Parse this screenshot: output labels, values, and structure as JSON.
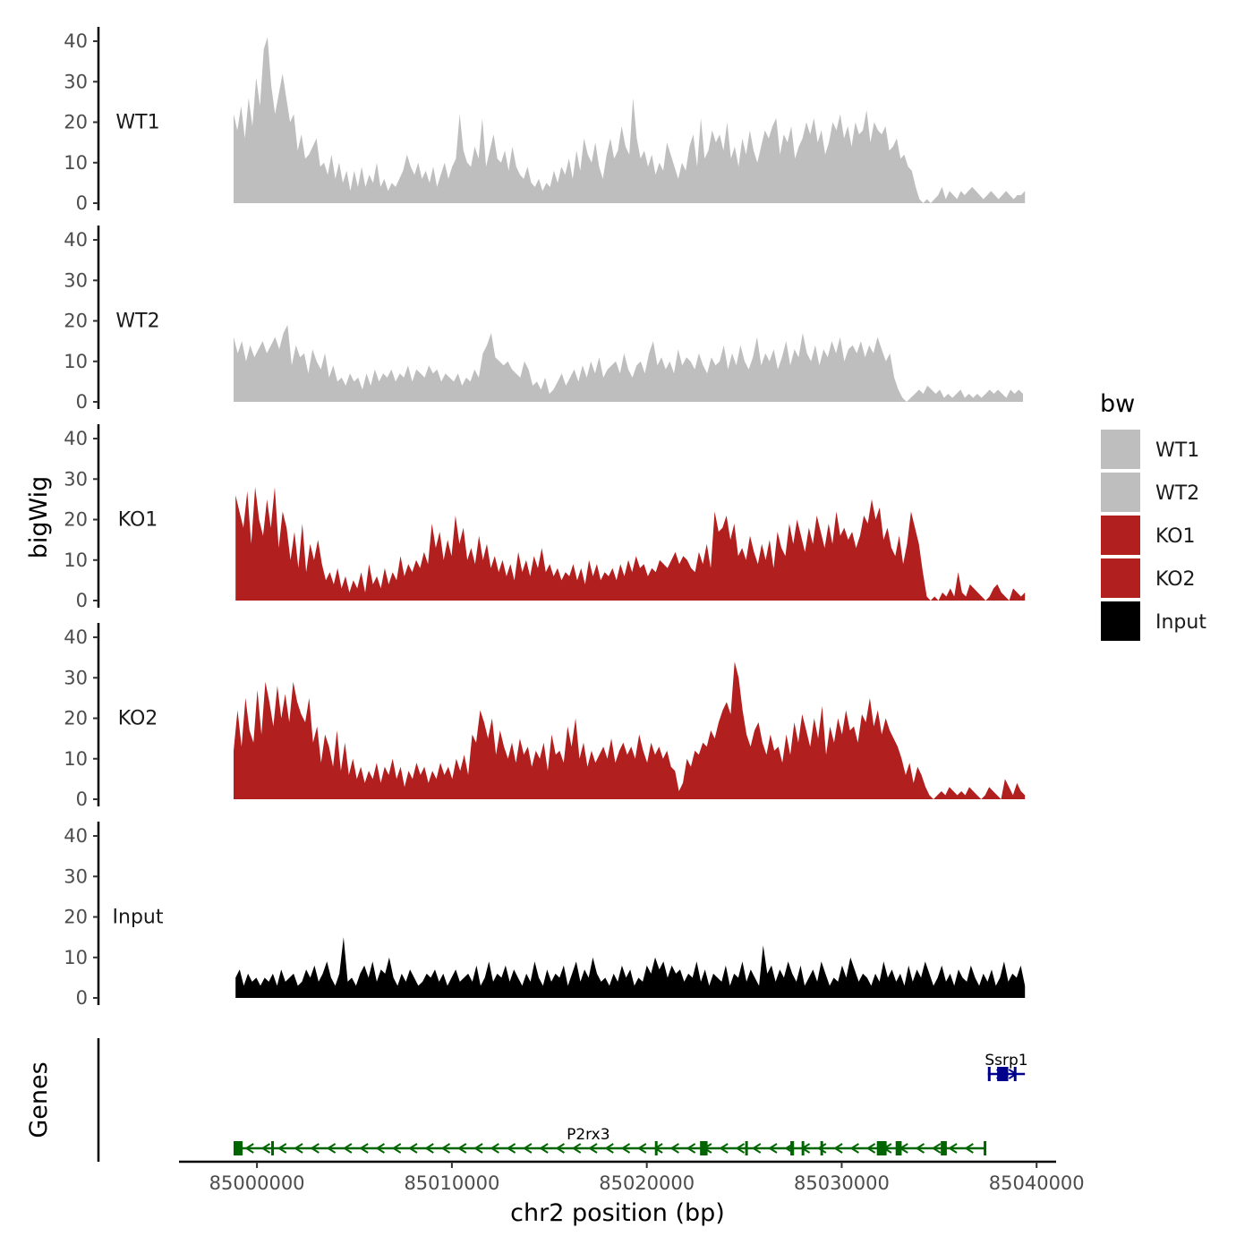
{
  "chart_data": {
    "type": "area",
    "y_axis_title": "bigWig",
    "x_axis_title": "chr2 position (bp)",
    "x_range": [
      84996000,
      85041000
    ],
    "x_ticks": [
      85000000,
      85010000,
      85020000,
      85030000,
      85040000
    ],
    "x_tick_labels": [
      "85000000",
      "85010000",
      "85020000",
      "85030000",
      "85040000"
    ],
    "y_range": [
      0,
      42
    ],
    "y_ticks": [
      0,
      10,
      20,
      30,
      40
    ],
    "y_tick_labels": [
      "0",
      "10",
      "20",
      "30",
      "40"
    ],
    "legend": {
      "title": "bw",
      "position": "right",
      "entries": [
        {
          "label": "WT1",
          "color": "#bebebe"
        },
        {
          "label": "WT2",
          "color": "#bebebe"
        },
        {
          "label": "KO1",
          "color": "#b21f1f"
        },
        {
          "label": "KO2",
          "color": "#b21f1f"
        },
        {
          "label": "Input",
          "color": "#000000"
        }
      ]
    },
    "series": [
      {
        "name": "WT1",
        "color": "#bebebe",
        "x_start": 84998800,
        "x_end": 85039400,
        "values": [
          22,
          18,
          24,
          16,
          26,
          19,
          31,
          24,
          38,
          41,
          29,
          22,
          27,
          32,
          26,
          20,
          22,
          13,
          17,
          11,
          12,
          14,
          16,
          9,
          10,
          7,
          12,
          6,
          10,
          5,
          8,
          3,
          8,
          4,
          9,
          4,
          7,
          5,
          10,
          4,
          6,
          3,
          5,
          4,
          6,
          8,
          12,
          9,
          7,
          10,
          6,
          8,
          5,
          9,
          4,
          7,
          10,
          6,
          9,
          11,
          22,
          13,
          10,
          9,
          14,
          11,
          21,
          9,
          13,
          17,
          11,
          10,
          13,
          8,
          14,
          9,
          7,
          6,
          9,
          5,
          4,
          6,
          3,
          5,
          4,
          8,
          5,
          9,
          7,
          11,
          6,
          13,
          8,
          16,
          12,
          10,
          15,
          9,
          6,
          12,
          16,
          11,
          13,
          19,
          14,
          12,
          26,
          16,
          11,
          13,
          9,
          12,
          7,
          10,
          8,
          15,
          12,
          9,
          6,
          10,
          8,
          14,
          17,
          9,
          21,
          11,
          13,
          18,
          15,
          17,
          13,
          20,
          11,
          14,
          9,
          16,
          12,
          18,
          13,
          10,
          14,
          18,
          16,
          19,
          21,
          12,
          17,
          15,
          19,
          11,
          14,
          16,
          20,
          17,
          21,
          15,
          18,
          12,
          15,
          20,
          18,
          22,
          16,
          19,
          14,
          20,
          17,
          18,
          23,
          15,
          20,
          18,
          17,
          19,
          13,
          14,
          16,
          11,
          12,
          9,
          8,
          4,
          1,
          0,
          1,
          0,
          1,
          2,
          4,
          1,
          3,
          2,
          1,
          3,
          2,
          3,
          4,
          3,
          2,
          1,
          2,
          3,
          2,
          1,
          2,
          3,
          2,
          1,
          2,
          2,
          3
        ]
      },
      {
        "name": "WT2",
        "color": "#bebebe",
        "x_start": 84998800,
        "x_end": 85039300,
        "values": [
          16,
          12,
          15,
          10,
          14,
          11,
          13,
          15,
          12,
          14,
          16,
          13,
          17,
          19,
          9,
          14,
          11,
          12,
          7,
          13,
          10,
          8,
          12,
          6,
          9,
          5,
          6,
          4,
          7,
          5,
          6,
          3,
          7,
          4,
          8,
          5,
          7,
          6,
          8,
          5,
          7,
          6,
          9,
          5,
          8,
          7,
          6,
          9,
          7,
          8,
          5,
          7,
          6,
          5,
          7,
          4,
          6,
          5,
          8,
          6,
          12,
          14,
          17,
          11,
          10,
          9,
          10,
          8,
          7,
          6,
          10,
          8,
          4,
          5,
          3,
          6,
          2,
          3,
          5,
          7,
          4,
          6,
          8,
          5,
          9,
          6,
          10,
          7,
          11,
          6,
          8,
          9,
          10,
          7,
          12,
          8,
          6,
          9,
          10,
          7,
          12,
          15,
          9,
          11,
          8,
          10,
          7,
          13,
          9,
          11,
          10,
          8,
          12,
          9,
          7,
          11,
          9,
          10,
          14,
          8,
          12,
          9,
          14,
          10,
          8,
          11,
          16,
          9,
          12,
          10,
          13,
          8,
          11,
          15,
          9,
          13,
          11,
          17,
          12,
          10,
          14,
          9,
          13,
          11,
          15,
          12,
          16,
          10,
          13,
          14,
          12,
          15,
          11,
          14,
          12,
          16,
          13,
          10,
          12,
          6,
          3,
          1,
          0,
          1,
          2,
          3,
          2,
          4,
          3,
          2,
          3,
          1,
          2,
          1,
          2,
          3,
          1,
          2,
          1,
          2,
          1,
          2,
          3,
          2,
          3,
          2,
          1,
          3,
          2,
          3,
          2
        ]
      },
      {
        "name": "KO1",
        "color": "#b21f1f",
        "x_start": 84998900,
        "x_end": 85039400,
        "values": [
          26,
          22,
          18,
          27,
          14,
          28,
          20,
          16,
          25,
          18,
          28,
          13,
          22,
          18,
          10,
          17,
          8,
          19,
          7,
          14,
          10,
          15,
          9,
          5,
          7,
          4,
          8,
          3,
          6,
          2,
          5,
          3,
          7,
          2,
          9,
          4,
          6,
          3,
          8,
          4,
          7,
          5,
          11,
          6,
          9,
          7,
          10,
          8,
          12,
          9,
          19,
          13,
          17,
          10,
          15,
          11,
          21,
          14,
          18,
          10,
          13,
          9,
          16,
          10,
          14,
          8,
          11,
          7,
          10,
          6,
          9,
          5,
          12,
          7,
          10,
          6,
          11,
          8,
          13,
          7,
          9,
          6,
          8,
          5,
          7,
          6,
          9,
          5,
          8,
          4,
          10,
          6,
          9,
          5,
          7,
          6,
          8,
          5,
          9,
          6,
          10,
          7,
          11,
          8,
          9,
          6,
          8,
          7,
          10,
          9,
          8,
          10,
          12,
          9,
          11,
          10,
          8,
          7,
          12,
          9,
          14,
          8,
          22,
          17,
          18,
          21,
          15,
          19,
          11,
          13,
          10,
          16,
          12,
          9,
          14,
          10,
          15,
          8,
          17,
          13,
          11,
          19,
          14,
          20,
          16,
          12,
          18,
          14,
          21,
          17,
          13,
          19,
          14,
          22,
          16,
          18,
          15,
          17,
          13,
          16,
          21,
          19,
          25,
          20,
          23,
          15,
          18,
          13,
          11,
          16,
          9,
          14,
          22,
          18,
          14,
          7,
          1,
          0,
          1,
          0,
          2,
          1,
          3,
          1,
          7,
          2,
          1,
          4,
          3,
          2,
          1,
          0,
          1,
          3,
          4,
          2,
          1,
          0,
          3,
          2,
          1,
          2
        ]
      },
      {
        "name": "KO2",
        "color": "#b21f1f",
        "x_start": 84998800,
        "x_end": 85039400,
        "values": [
          12,
          22,
          13,
          25,
          17,
          14,
          27,
          16,
          29,
          24,
          18,
          28,
          20,
          26,
          19,
          29,
          24,
          21,
          19,
          25,
          14,
          18,
          9,
          16,
          13,
          8,
          17,
          7,
          14,
          6,
          10,
          5,
          8,
          4,
          7,
          5,
          9,
          4,
          8,
          6,
          10,
          5,
          8,
          3,
          7,
          5,
          9,
          6,
          8,
          4,
          7,
          5,
          9,
          6,
          8,
          5,
          10,
          7,
          11,
          6,
          16,
          14,
          22,
          19,
          15,
          20,
          11,
          17,
          13,
          10,
          14,
          9,
          15,
          11,
          13,
          8,
          12,
          10,
          14,
          7,
          16,
          11,
          12,
          9,
          18,
          13,
          20,
          10,
          14,
          8,
          12,
          9,
          11,
          13,
          10,
          15,
          9,
          12,
          14,
          11,
          13,
          10,
          16,
          12,
          9,
          14,
          11,
          13,
          10,
          12,
          8,
          7,
          2,
          4,
          10,
          8,
          12,
          11,
          14,
          13,
          17,
          15,
          19,
          22,
          24,
          21,
          34,
          30,
          22,
          16,
          13,
          17,
          19,
          14,
          11,
          16,
          12,
          13,
          9,
          16,
          11,
          19,
          14,
          21,
          17,
          13,
          20,
          15,
          23,
          11,
          18,
          14,
          20,
          16,
          22,
          17,
          18,
          14,
          21,
          19,
          25,
          18,
          22,
          16,
          20,
          17,
          15,
          13,
          10,
          6,
          9,
          4,
          8,
          6,
          3,
          1,
          0,
          1,
          2,
          1,
          3,
          2,
          1,
          2,
          1,
          3,
          2,
          1,
          0,
          1,
          3,
          2,
          1,
          0,
          5,
          3,
          1,
          4,
          2,
          1
        ]
      },
      {
        "name": "Input",
        "color": "#000000",
        "x_start": 84998900,
        "x_end": 85039400,
        "values": [
          5,
          7,
          3,
          6,
          4,
          5,
          3,
          5,
          4,
          6,
          3,
          7,
          4,
          5,
          6,
          3,
          4,
          7,
          5,
          8,
          4,
          6,
          9,
          5,
          3,
          6,
          15,
          4,
          5,
          3,
          6,
          8,
          5,
          9,
          4,
          7,
          6,
          10,
          5,
          3,
          6,
          4,
          7,
          5,
          3,
          4,
          6,
          5,
          7,
          4,
          6,
          3,
          5,
          7,
          4,
          5,
          6,
          4,
          8,
          3,
          5,
          9,
          4,
          6,
          5,
          8,
          4,
          7,
          5,
          3,
          6,
          4,
          9,
          5,
          3,
          7,
          4,
          6,
          5,
          8,
          3,
          6,
          9,
          4,
          7,
          5,
          10,
          6,
          4,
          5,
          3,
          6,
          4,
          8,
          5,
          7,
          3,
          5,
          4,
          8,
          6,
          10,
          7,
          9,
          5,
          8,
          6,
          7,
          4,
          6,
          5,
          9,
          4,
          7,
          3,
          6,
          5,
          4,
          8,
          3,
          6,
          5,
          9,
          4,
          7,
          5,
          3,
          13,
          6,
          8,
          4,
          7,
          5,
          9,
          6,
          4,
          8,
          3,
          5,
          7,
          4,
          9,
          6,
          3,
          5,
          4,
          8,
          5,
          10,
          7,
          4,
          6,
          5,
          3,
          6,
          4,
          9,
          5,
          7,
          4,
          6,
          3,
          8,
          4,
          7,
          5,
          9,
          6,
          3,
          5,
          8,
          4,
          6,
          3,
          7,
          5,
          4,
          8,
          5,
          3,
          6,
          4,
          7,
          3,
          5,
          9,
          4,
          6,
          5,
          8,
          3
        ]
      }
    ],
    "genes_panel": {
      "axis_title": "Genes",
      "genes": [
        {
          "name": "P2rx3",
          "strand": "-",
          "color": "#006400",
          "start": 84998800,
          "end": 85037400
        },
        {
          "name": "Ssrp1",
          "strand": "+",
          "color": "#00008b",
          "start": 85037500,
          "end": 85039400
        }
      ]
    }
  }
}
